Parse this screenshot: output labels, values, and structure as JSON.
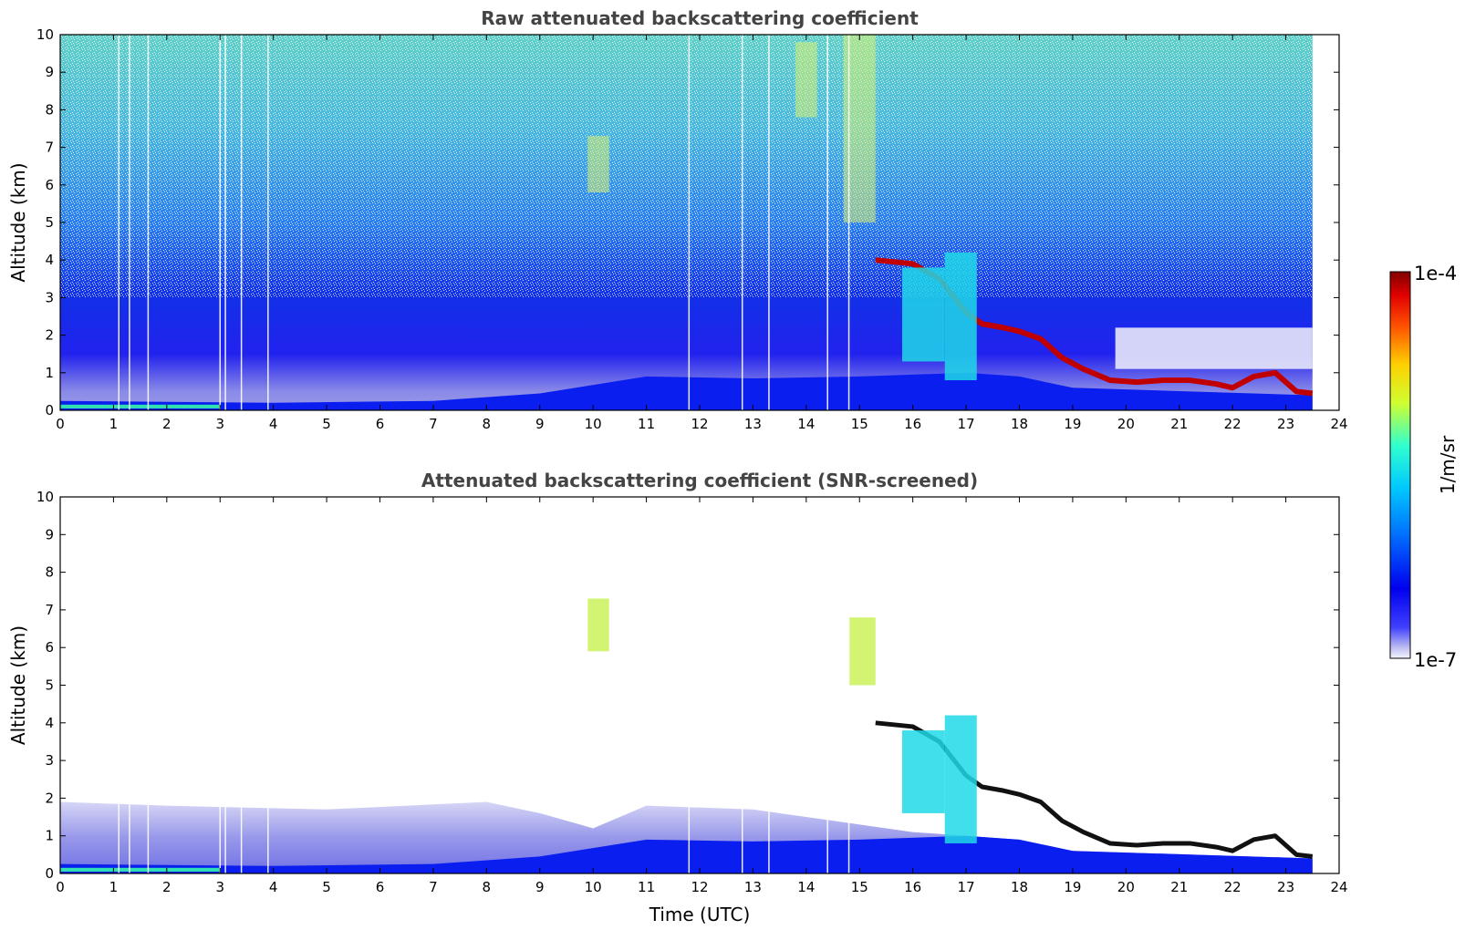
{
  "chart_data": [
    {
      "type": "heatmap",
      "title": "Raw attenuated backscattering coefficient",
      "xlabel": "",
      "ylabel": "Altitude (km)",
      "xlim": [
        0,
        24
      ],
      "ylim": [
        0,
        10
      ],
      "xticks": [
        "0",
        "1",
        "2",
        "3",
        "4",
        "5",
        "6",
        "7",
        "8",
        "9",
        "10",
        "11",
        "12",
        "13",
        "14",
        "15",
        "16",
        "17",
        "18",
        "19",
        "20",
        "21",
        "22",
        "23",
        "24"
      ],
      "yticks": [
        "0",
        "1",
        "2",
        "3",
        "4",
        "5",
        "6",
        "7",
        "8",
        "9",
        "10"
      ],
      "data_end_time": 23.5,
      "cloud_base_layer": {
        "x": [
          15.3,
          16.0,
          16.5,
          17.0,
          17.3,
          17.7,
          18.0,
          18.4,
          18.8,
          19.2,
          19.7,
          20.2,
          20.7,
          21.2,
          21.7,
          22.0,
          22.4,
          22.8,
          23.2,
          23.5
        ],
        "y": [
          4.0,
          3.9,
          3.5,
          2.6,
          2.3,
          2.2,
          2.1,
          1.9,
          1.4,
          1.1,
          0.8,
          0.75,
          0.8,
          0.8,
          0.7,
          0.6,
          0.9,
          1.0,
          0.5,
          0.45
        ]
      },
      "high_cloud_patches": [
        {
          "x_range": [
            9.9,
            10.3
          ],
          "y_range": [
            5.8,
            7.3
          ]
        },
        {
          "x_range": [
            13.8,
            14.2
          ],
          "y_range": [
            7.8,
            9.8
          ]
        },
        {
          "x_range": [
            14.7,
            15.3
          ],
          "y_range": [
            5.0,
            10.0
          ]
        }
      ]
    },
    {
      "type": "heatmap",
      "title": "Attenuated backscattering coefficient (SNR-screened)",
      "xlabel": "Time (UTC)",
      "ylabel": "Altitude (km)",
      "xlim": [
        0,
        24
      ],
      "ylim": [
        0,
        10
      ],
      "xticks": [
        "0",
        "1",
        "2",
        "3",
        "4",
        "5",
        "6",
        "7",
        "8",
        "9",
        "10",
        "11",
        "12",
        "13",
        "14",
        "15",
        "16",
        "17",
        "18",
        "19",
        "20",
        "21",
        "22",
        "23",
        "24"
      ],
      "yticks": [
        "0",
        "1",
        "2",
        "3",
        "4",
        "5",
        "6",
        "7",
        "8",
        "9",
        "10"
      ],
      "data_end_time": 23.5
    }
  ],
  "colorbar": {
    "label": "1/m/sr",
    "max_label": "1e-4",
    "min_label": "1e-7",
    "scale": "log",
    "range": [
      1e-07,
      0.0001
    ],
    "colormap": [
      "#f4f4ff",
      "#b8b8f0",
      "#4040ff",
      "#0000ee",
      "#0070ff",
      "#00c8ff",
      "#30ffcf",
      "#cfff30",
      "#ffd000",
      "#ff5000",
      "#e00000",
      "#800000"
    ]
  }
}
